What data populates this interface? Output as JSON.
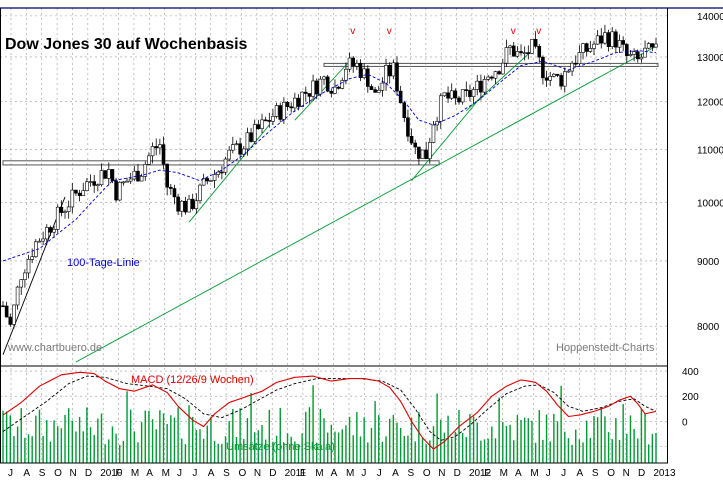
{
  "chart_data": {
    "type": "candlestick",
    "title": "Dow Jones 30 auf Wochenbasis",
    "source_left": "www.chartbuero.de",
    "source_right": "Hoppenstedt-Charts",
    "ma_label": "100-Tage-Linie",
    "macd_label": "MACD (12/26/9 Wochen)",
    "volume_label": "Umsätze (ohne Skala)",
    "price_axis": {
      "ticks": [
        8000,
        9000,
        10000,
        11000,
        12000,
        13000,
        14000
      ],
      "scale": "log",
      "ylim": [
        7500,
        14200
      ]
    },
    "macd_axis": {
      "ticks": [
        400,
        200,
        0,
        -200
      ],
      "tick_labels": [
        "400",
        "200",
        "0",
        ""
      ],
      "ylim": [
        -330,
        440
      ]
    },
    "x_labels": [
      "J",
      "A",
      "S",
      "O",
      "N",
      "D",
      "2010",
      "F",
      "M",
      "A",
      "M",
      "J",
      "J",
      "A",
      "S",
      "O",
      "N",
      "D",
      "2011",
      "F",
      "M",
      "A",
      "M",
      "J",
      "J",
      "A",
      "S",
      "O",
      "N",
      "D",
      "2012",
      "F",
      "M",
      "A",
      "M",
      "J",
      "J",
      "A",
      "S",
      "O",
      "N",
      "D",
      "2013"
    ],
    "v_marks": [
      {
        "week": 96,
        "label": "v"
      },
      {
        "week": 106,
        "label": "v"
      },
      {
        "week": 140,
        "label": "v"
      },
      {
        "week": 147,
        "label": "v"
      }
    ],
    "price_anchors": [
      [
        0,
        8300
      ],
      [
        2,
        8000
      ],
      [
        5,
        8800
      ],
      [
        9,
        9300
      ],
      [
        13,
        9600
      ],
      [
        18,
        10000
      ],
      [
        22,
        10300
      ],
      [
        26,
        10500
      ],
      [
        29,
        10600
      ],
      [
        31,
        10200
      ],
      [
        34,
        10400
      ],
      [
        38,
        10600
      ],
      [
        41,
        11000
      ],
      [
        43,
        11100
      ],
      [
        45,
        10300
      ],
      [
        48,
        10000
      ],
      [
        51,
        9900
      ],
      [
        53,
        10100
      ],
      [
        56,
        10400
      ],
      [
        59,
        10600
      ],
      [
        62,
        10900
      ],
      [
        66,
        11100
      ],
      [
        70,
        11400
      ],
      [
        74,
        11700
      ],
      [
        78,
        11900
      ],
      [
        81,
        12100
      ],
      [
        85,
        12300
      ],
      [
        88,
        12500
      ],
      [
        91,
        12300
      ],
      [
        94,
        12800
      ],
      [
        97,
        12800
      ],
      [
        100,
        12500
      ],
      [
        102,
        12100
      ],
      [
        105,
        12600
      ],
      [
        107,
        12700
      ],
      [
        110,
        11700
      ],
      [
        113,
        11000
      ],
      [
        116,
        10900
      ],
      [
        118,
        11600
      ],
      [
        121,
        12100
      ],
      [
        124,
        12000
      ],
      [
        127,
        12100
      ],
      [
        130,
        12300
      ],
      [
        133,
        12600
      ],
      [
        136,
        12800
      ],
      [
        139,
        13200
      ],
      [
        142,
        13000
      ],
      [
        145,
        13200
      ],
      [
        148,
        12700
      ],
      [
        151,
        12500
      ],
      [
        153,
        12500
      ],
      [
        156,
        12900
      ],
      [
        159,
        13100
      ],
      [
        162,
        13300
      ],
      [
        165,
        13500
      ],
      [
        168,
        13400
      ],
      [
        171,
        13000
      ],
      [
        174,
        12900
      ],
      [
        176,
        13100
      ],
      [
        179,
        13100
      ]
    ],
    "ma_anchors": [
      [
        0,
        9000
      ],
      [
        10,
        9200
      ],
      [
        20,
        9700
      ],
      [
        30,
        10400
      ],
      [
        38,
        10500
      ],
      [
        43,
        10600
      ],
      [
        48,
        10550
      ],
      [
        54,
        10400
      ],
      [
        60,
        10600
      ],
      [
        66,
        10900
      ],
      [
        72,
        11300
      ],
      [
        80,
        11800
      ],
      [
        88,
        12200
      ],
      [
        95,
        12500
      ],
      [
        100,
        12600
      ],
      [
        105,
        12400
      ],
      [
        110,
        12000
      ],
      [
        114,
        11600
      ],
      [
        118,
        11500
      ],
      [
        124,
        11700
      ],
      [
        130,
        12000
      ],
      [
        136,
        12400
      ],
      [
        142,
        12800
      ],
      [
        148,
        12900
      ],
      [
        155,
        12700
      ],
      [
        162,
        12900
      ],
      [
        168,
        13100
      ],
      [
        174,
        13150
      ],
      [
        179,
        13100
      ]
    ],
    "macd_anchors": [
      [
        0,
        50
      ],
      [
        5,
        150
      ],
      [
        10,
        280
      ],
      [
        16,
        370
      ],
      [
        21,
        390
      ],
      [
        25,
        380
      ],
      [
        28,
        320
      ],
      [
        32,
        260
      ],
      [
        36,
        240
      ],
      [
        41,
        290
      ],
      [
        45,
        230
      ],
      [
        48,
        120
      ],
      [
        52,
        10
      ],
      [
        55,
        -40
      ],
      [
        58,
        60
      ],
      [
        62,
        150
      ],
      [
        66,
        190
      ],
      [
        71,
        240
      ],
      [
        75,
        310
      ],
      [
        80,
        350
      ],
      [
        85,
        360
      ],
      [
        90,
        320
      ],
      [
        95,
        340
      ],
      [
        99,
        340
      ],
      [
        103,
        320
      ],
      [
        106,
        270
      ],
      [
        109,
        160
      ],
      [
        112,
        0
      ],
      [
        115,
        -130
      ],
      [
        118,
        -220
      ],
      [
        121,
        -160
      ],
      [
        125,
        -40
      ],
      [
        130,
        70
      ],
      [
        134,
        200
      ],
      [
        138,
        280
      ],
      [
        142,
        330
      ],
      [
        146,
        310
      ],
      [
        149,
        240
      ],
      [
        152,
        130
      ],
      [
        155,
        40
      ],
      [
        158,
        50
      ],
      [
        162,
        80
      ],
      [
        166,
        120
      ],
      [
        169,
        170
      ],
      [
        172,
        200
      ],
      [
        174,
        140
      ],
      [
        176,
        60
      ],
      [
        179,
        80
      ]
    ],
    "signal_anchors": [
      [
        0,
        -80
      ],
      [
        6,
        40
      ],
      [
        12,
        160
      ],
      [
        18,
        300
      ],
      [
        23,
        360
      ],
      [
        28,
        350
      ],
      [
        34,
        300
      ],
      [
        40,
        280
      ],
      [
        45,
        260
      ],
      [
        50,
        180
      ],
      [
        55,
        60
      ],
      [
        60,
        30
      ],
      [
        65,
        90
      ],
      [
        70,
        170
      ],
      [
        75,
        250
      ],
      [
        80,
        300
      ],
      [
        86,
        340
      ],
      [
        92,
        340
      ],
      [
        98,
        340
      ],
      [
        104,
        320
      ],
      [
        109,
        250
      ],
      [
        113,
        100
      ],
      [
        117,
        -80
      ],
      [
        120,
        -150
      ],
      [
        124,
        -120
      ],
      [
        128,
        -30
      ],
      [
        133,
        100
      ],
      [
        138,
        220
      ],
      [
        143,
        280
      ],
      [
        147,
        290
      ],
      [
        151,
        230
      ],
      [
        155,
        120
      ],
      [
        159,
        80
      ],
      [
        164,
        110
      ],
      [
        169,
        160
      ],
      [
        173,
        180
      ],
      [
        176,
        120
      ],
      [
        179,
        80
      ]
    ],
    "support_lines": [
      {
        "kind": "band",
        "y": 10780,
        "y2": 10700,
        "from_week": 0,
        "to_week": 119
      },
      {
        "kind": "band",
        "y": 12850,
        "y2": 12780,
        "from_week": 88,
        "to_week": 179
      }
    ],
    "trend_lines": [
      {
        "from": [
          0,
          7600
        ],
        "to": [
          17,
          10100
        ],
        "color": "#000000"
      },
      {
        "from": [
          20,
          7500
        ],
        "to": [
          179,
          13250
        ],
        "color": "#009933"
      },
      {
        "from": [
          51,
          9650
        ],
        "to": [
          73,
          11500
        ],
        "color": "#009933"
      },
      {
        "from": [
          80,
          11600
        ],
        "to": [
          95,
          12900
        ],
        "color": "#009933"
      },
      {
        "from": [
          112,
          10400
        ],
        "to": [
          130,
          12000
        ],
        "color": "#009933"
      },
      {
        "from": [
          127,
          11800
        ],
        "to": [
          145,
          13150
        ],
        "color": "#009933"
      }
    ],
    "colors": {
      "price": "#000000",
      "ma": "#0000cc",
      "macd": "#dd0000",
      "signal": "#000000",
      "volume": "#009933",
      "grid": "#9a9a9a",
      "trend": "#009933",
      "v_mark": "#e00000"
    }
  }
}
